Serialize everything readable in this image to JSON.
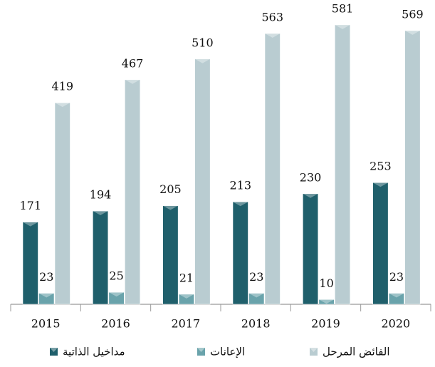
{
  "chart_data": {
    "type": "bar",
    "categories": [
      "2015",
      "2016",
      "2017",
      "2018",
      "2019",
      "2020"
    ],
    "series": [
      {
        "name": "مداخيل الذاتية",
        "color": "#1f5f6b",
        "values": [
          171,
          194,
          205,
          213,
          230,
          253
        ]
      },
      {
        "name": "الإعانات",
        "color": "#6aa3ab",
        "values": [
          23,
          25,
          21,
          23,
          10,
          23
        ]
      },
      {
        "name": "الفائض المرحل",
        "color": "#b9ccd1",
        "values": [
          419,
          467,
          510,
          563,
          581,
          569
        ]
      }
    ],
    "ylim": [
      0,
      600
    ],
    "legend": "bottom"
  }
}
